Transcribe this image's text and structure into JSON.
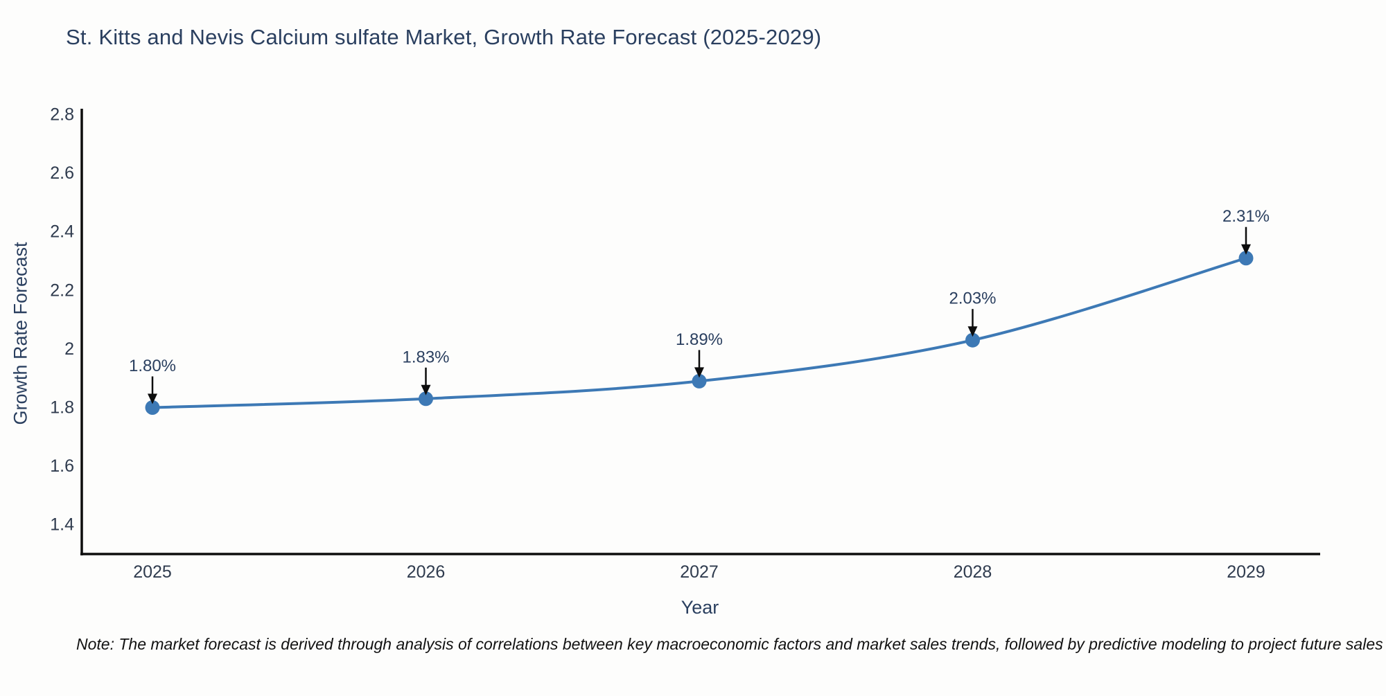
{
  "chart_data": {
    "type": "line",
    "title": "St. Kitts and Nevis Calcium sulfate Market, Growth Rate Forecast (2025-2029)",
    "xlabel": "Year",
    "ylabel": "Growth Rate Forecast",
    "x": [
      2025,
      2026,
      2027,
      2028,
      2029
    ],
    "y": [
      1.8,
      1.83,
      1.89,
      2.03,
      2.31
    ],
    "point_labels": [
      "1.80%",
      "1.83%",
      "1.89%",
      "2.03%",
      "2.31%"
    ],
    "x_tick_labels": [
      "2025",
      "2026",
      "2027",
      "2028",
      "2029"
    ],
    "y_ticks": [
      2.8,
      2.6,
      2.4,
      2.2,
      2.0,
      1.8,
      1.6,
      1.4
    ],
    "y_tick_labels": [
      "2.8",
      "2.6",
      "2.4",
      "2.2",
      "2",
      "1.8",
      "1.6",
      "1.4"
    ],
    "ylim": [
      1.3,
      2.82
    ],
    "grid": false,
    "legend": "none",
    "line_shape": "spline",
    "marker": "circle"
  },
  "note": "Note: The market forecast is derived through analysis of correlations between key macroeconomic factors and market sales trends, followed by predictive modeling to project future sales",
  "colors": {
    "line": "#3d79b5",
    "marker": "#3d79b5",
    "axis": "#0d0d0d",
    "arrow": "#0d0d0d",
    "text": "#2a3f5f",
    "tick_text": "#2f3b4e",
    "note_text": "#121212",
    "background": "#fdfdfc"
  }
}
